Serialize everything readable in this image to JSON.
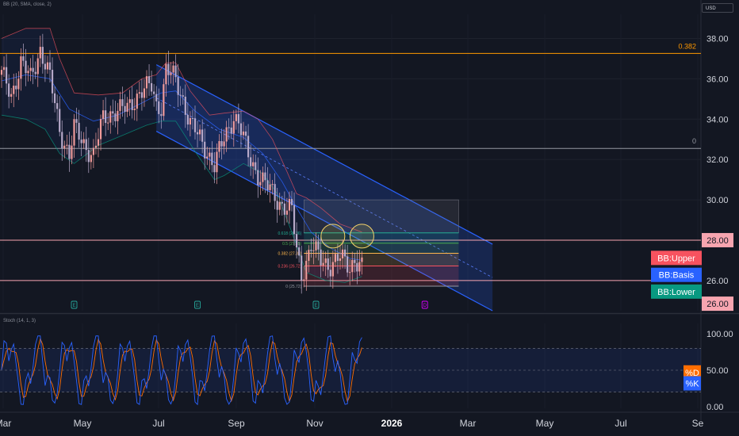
{
  "main_legend": "BB (20, SMA, close, 2)",
  "osc_legend": "Stoch (14, 1, 3)",
  "currency_label": "USD",
  "colors": {
    "bg": "#131722",
    "up": "#ef9a9a",
    "down": "#b7a9c9",
    "bb_upper": "#f7525f",
    "bb_basis": "#2962ff",
    "bb_lower": "#089981",
    "channel": "#2962ff",
    "hline_pink": "#f7a5b0",
    "hline_orange": "#ff9800",
    "stoch_k": "#2962ff",
    "stoch_d": "#ff6d00"
  },
  "chart_data": [
    {
      "type": "candlestick",
      "ylim": [
        24.5,
        39.2
      ],
      "y_ticks": [
        38,
        36,
        34,
        32,
        30,
        28,
        26
      ],
      "y_tick_labels": [
        "38.00",
        "36.00",
        "34.00",
        "32.00",
        "30.00",
        "28.00",
        "26.00"
      ],
      "x_tick_labels": [
        "Mar",
        "May",
        "Jul",
        "Sep",
        "Nov",
        "2026",
        "Mar",
        "May",
        "Jul",
        "Se"
      ],
      "price_path": [
        [
          0,
          36.2
        ],
        [
          4,
          35.2
        ],
        [
          8,
          36.8
        ],
        [
          12,
          36.0
        ],
        [
          16,
          37.5
        ],
        [
          20,
          36.0
        ],
        [
          24,
          33.5
        ],
        [
          28,
          32.2
        ],
        [
          30,
          33.5
        ],
        [
          34,
          32.8
        ],
        [
          38,
          32.2
        ],
        [
          42,
          34.0
        ],
        [
          46,
          34.4
        ],
        [
          52,
          34.5
        ],
        [
          56,
          35.2
        ],
        [
          58,
          35.4
        ],
        [
          62,
          35.6
        ],
        [
          64,
          34.7
        ],
        [
          66,
          34.7
        ],
        [
          68,
          36.5
        ],
        [
          72,
          35.9
        ],
        [
          75,
          35.0
        ],
        [
          78,
          33.8
        ],
        [
          82,
          33.0
        ],
        [
          86,
          32.2
        ],
        [
          88,
          31.7
        ],
        [
          92,
          33.0
        ],
        [
          96,
          34.2
        ],
        [
          98,
          33.8
        ],
        [
          102,
          32.2
        ],
        [
          106,
          31.3
        ],
        [
          110,
          30.6
        ],
        [
          114,
          30.0
        ],
        [
          118,
          29.6
        ],
        [
          120,
          29.4
        ],
        [
          122,
          27.5
        ],
        [
          124,
          26.3
        ],
        [
          126,
          27.0
        ],
        [
          128,
          27.7
        ],
        [
          132,
          27.0
        ],
        [
          136,
          26.8
        ],
        [
          140,
          27.1
        ],
        [
          144,
          26.7
        ],
        [
          146,
          27.1
        ],
        [
          149,
          26.6
        ]
      ],
      "bb_upper": [
        [
          0,
          38.0
        ],
        [
          10,
          38.5
        ],
        [
          20,
          38.5
        ],
        [
          24,
          37.0
        ],
        [
          30,
          35.3
        ],
        [
          40,
          35.2
        ],
        [
          50,
          35.3
        ],
        [
          58,
          36.0
        ],
        [
          64,
          36.2
        ],
        [
          68,
          36.8
        ],
        [
          72,
          36.8
        ],
        [
          78,
          35.4
        ],
        [
          86,
          34.2
        ],
        [
          92,
          34.3
        ],
        [
          100,
          34.4
        ],
        [
          106,
          34.0
        ],
        [
          112,
          33.0
        ],
        [
          118,
          31.4
        ],
        [
          122,
          30.3
        ],
        [
          126,
          30.1
        ],
        [
          132,
          29.6
        ],
        [
          140,
          28.8
        ],
        [
          149,
          28.4
        ]
      ],
      "bb_basis": [
        [
          0,
          35.9
        ],
        [
          10,
          36.2
        ],
        [
          20,
          36.0
        ],
        [
          28,
          34.5
        ],
        [
          38,
          33.9
        ],
        [
          48,
          34.2
        ],
        [
          58,
          34.8
        ],
        [
          66,
          35.3
        ],
        [
          72,
          35.4
        ],
        [
          80,
          34.4
        ],
        [
          90,
          33.5
        ],
        [
          100,
          33.1
        ],
        [
          108,
          32.3
        ],
        [
          116,
          30.9
        ],
        [
          122,
          29.6
        ],
        [
          128,
          28.4
        ],
        [
          136,
          27.6
        ],
        [
          144,
          27.1
        ],
        [
          149,
          27.0
        ]
      ],
      "bb_lower": [
        [
          0,
          34.2
        ],
        [
          10,
          34.0
        ],
        [
          18,
          33.5
        ],
        [
          24,
          32.3
        ],
        [
          30,
          31.8
        ],
        [
          40,
          32.7
        ],
        [
          50,
          33.2
        ],
        [
          60,
          33.7
        ],
        [
          66,
          33.9
        ],
        [
          72,
          33.9
        ],
        [
          80,
          32.4
        ],
        [
          88,
          31.0
        ],
        [
          92,
          31.2
        ],
        [
          100,
          31.8
        ],
        [
          108,
          31.3
        ],
        [
          114,
          30.3
        ],
        [
          120,
          28.4
        ],
        [
          126,
          26.4
        ],
        [
          134,
          26.0
        ],
        [
          142,
          25.9
        ],
        [
          149,
          26.2
        ]
      ],
      "channel": {
        "start": [
          64,
          36.7
        ],
        "end": [
          203,
          27.8
        ],
        "width": 3.3
      },
      "horizontal_lines": [
        {
          "price": 37.26,
          "label": "0.382",
          "color": "#ff9800"
        },
        {
          "price": 32.55,
          "label": "0",
          "color": "#9598a1"
        },
        {
          "price": 28.0,
          "label": "",
          "color": "#f7a5b0"
        },
        {
          "price": 26.0,
          "label": "",
          "color": "#f7a5b0"
        }
      ],
      "fib_retracement": {
        "x_start": 125,
        "x_end": 189,
        "levels": [
          {
            "label": "0.618 (28.36)",
            "price": 28.36,
            "color": "#22ab94"
          },
          {
            "label": "0.5 (27.85)",
            "price": 27.85,
            "color": "#4caf50"
          },
          {
            "label": "0.382 (27.35)",
            "price": 27.35,
            "color": "#ffb74d"
          },
          {
            "label": "0.236 (26.72)",
            "price": 26.72,
            "color": "#f7525f"
          },
          {
            "label": "0 (25.72)",
            "price": 25.72,
            "color": "#9598a1"
          }
        ],
        "box_top": 30.0
      },
      "circles": [
        {
          "x": 137,
          "price": 28.2
        },
        {
          "x": 149,
          "price": 28.2
        }
      ],
      "price_axis_badges": [
        {
          "text": "28.00",
          "price": 28.0,
          "bg": "#f7a5b0",
          "fg": "#131722"
        },
        {
          "text": "BB:Upper",
          "price": 27.12,
          "bg": "#f7525f",
          "fg": "#ffffff"
        },
        {
          "text": "BB:Basis",
          "price": 26.28,
          "bg": "#2962ff",
          "fg": "#ffffff"
        },
        {
          "text": "BB:Lower",
          "price": 25.45,
          "bg": "#089981",
          "fg": "#ffffff"
        },
        {
          "text": "26.00",
          "price": 24.85,
          "bg": "#f7a5b0",
          "fg": "#131722"
        }
      ],
      "event_markers": [
        {
          "x": 30,
          "label": "E",
          "color": "#26a69a"
        },
        {
          "x": 81,
          "label": "E",
          "color": "#26a69a"
        },
        {
          "x": 130,
          "label": "E",
          "color": "#26a69a"
        },
        {
          "x": 175,
          "label": "D",
          "color": "#d500f9"
        }
      ]
    },
    {
      "type": "line",
      "name": "Stoch",
      "ylim": [
        0,
        100
      ],
      "y_ticks": [
        100,
        50,
        0
      ],
      "y_tick_labels": [
        "100.00",
        "50.00",
        "0.00"
      ],
      "band": [
        20,
        80
      ],
      "badges": [
        {
          "text": "%D",
          "value": 47,
          "bg": "#ff6d00"
        },
        {
          "text": "%K",
          "value": 32,
          "bg": "#2962ff"
        }
      ]
    }
  ]
}
